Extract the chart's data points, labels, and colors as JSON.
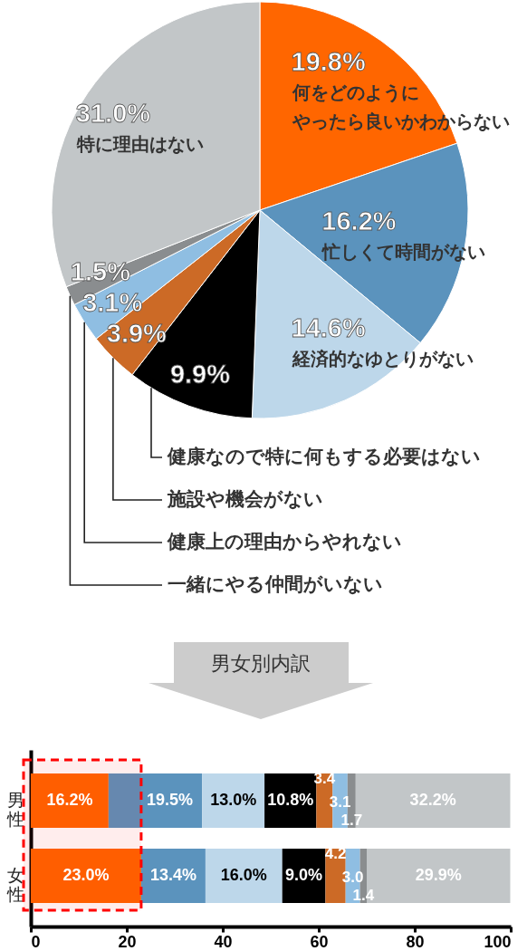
{
  "chart_data": [
    {
      "type": "pie",
      "categories": [
        "何をどのようにやったら良いかわからない",
        "忙しくて時間がない",
        "経済的なゆとりがない",
        "健康なので特に何もする必要はない",
        "施設や機会がない",
        "健康上の理由からやれない",
        "一緒にやる仲間がいない",
        "特に理由はない"
      ],
      "values": [
        19.8,
        16.2,
        14.6,
        9.9,
        3.9,
        3.1,
        1.5,
        31.0
      ],
      "colors": [
        "#ff6600",
        "#5b93bd",
        "#bdd7ea",
        "#000000",
        "#cc6a26",
        "#8fbee2",
        "#8a8d8f",
        "#c2c6c8"
      ],
      "value_labels": [
        "19.8%",
        "16.2%",
        "14.6%",
        "9.9%",
        "3.9%",
        "3.1%",
        "1.5%",
        "31.0%"
      ]
    },
    {
      "type": "bar",
      "title": "男女別内訳",
      "orientation": "horizontal",
      "stacked": true,
      "categories": [
        "男性",
        "女性"
      ],
      "series": [
        {
          "color": "#ff6600",
          "values": [
            16.2,
            23.0
          ],
          "value_labels": [
            "16.2%",
            "23.0%"
          ]
        },
        {
          "color": "#5b93bd",
          "values": [
            19.5,
            13.4
          ],
          "value_labels": [
            "19.5%",
            "13.4%"
          ]
        },
        {
          "color": "#bdd7ea",
          "values": [
            13.0,
            16.0
          ],
          "value_labels": [
            "13.0%",
            "16.0%"
          ]
        },
        {
          "color": "#000000",
          "values": [
            10.8,
            9.0
          ],
          "value_labels": [
            "10.8%",
            "9.0%"
          ]
        },
        {
          "color": "#cc6a26",
          "values": [
            3.4,
            4.2
          ],
          "value_labels": [
            "3.4",
            "4.2"
          ]
        },
        {
          "color": "#8fbee2",
          "values": [
            3.1,
            3.0
          ],
          "value_labels": [
            "3.1",
            "3.0"
          ]
        },
        {
          "color": "#8a8d8f",
          "values": [
            1.7,
            1.4
          ],
          "value_labels": [
            "1.7",
            "1.4"
          ]
        },
        {
          "color": "#c2c6c8",
          "values": [
            32.2,
            29.9
          ],
          "value_labels": [
            "32.2%",
            "29.9%"
          ]
        }
      ],
      "xlim": [
        0,
        100
      ],
      "xticks": [
        0,
        20,
        40,
        60,
        80,
        100
      ],
      "bands": [
        {
          "axis": "x",
          "from": 0,
          "to": 23,
          "color": "#ff0000"
        }
      ]
    }
  ]
}
